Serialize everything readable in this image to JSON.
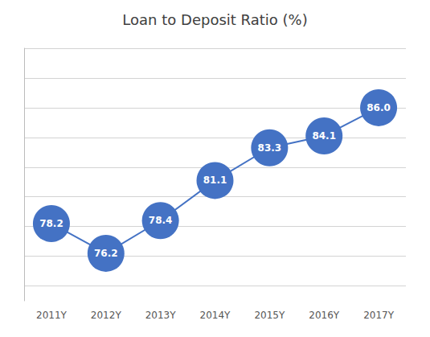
{
  "chart_data": {
    "type": "line",
    "title": "Loan to Deposit Ratio (%)",
    "categories": [
      "2011Y",
      "2012Y",
      "2013Y",
      "2014Y",
      "2015Y",
      "2016Y",
      "2017Y"
    ],
    "values": [
      78.2,
      76.2,
      78.4,
      81.1,
      83.3,
      84.1,
      86.0
    ],
    "value_labels": [
      "78.2",
      "76.2",
      "78.4",
      "81.1",
      "83.3",
      "84.1",
      "86.0"
    ],
    "color": "#4472C4",
    "ylim": [
      73.0,
      90.0
    ],
    "yticks": [
      74,
      76,
      78,
      80,
      82,
      84,
      86,
      88,
      90
    ],
    "grid": true,
    "data_labels": true,
    "tick_labels": "x",
    "marker": "circle"
  }
}
